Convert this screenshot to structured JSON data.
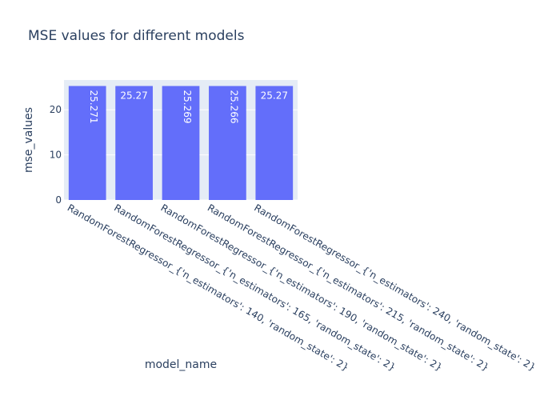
{
  "chart_data": {
    "type": "bar",
    "title": "MSE values for different models",
    "xlabel": "model_name",
    "ylabel": "mse_values",
    "categories": [
      "RandomForestRegressor_{'n_estimators': 140, 'random_state': 2}",
      "RandomForestRegressor_{'n_estimators': 165, 'random_state': 2}",
      "RandomForestRegressor_{'n_estimators': 190, 'random_state': 2}",
      "RandomForestRegressor_{'n_estimators': 215, 'random_state': 2}",
      "RandomForestRegressor_{'n_estimators': 240, 'random_state': 2}"
    ],
    "values": [
      25.271,
      25.27,
      25.269,
      25.266,
      25.27
    ],
    "data_labels": [
      "25.271",
      "25.27",
      "25.269",
      "25.266",
      "25.27"
    ],
    "ylim": [
      0,
      26.6
    ],
    "yticks": [
      0,
      10,
      20
    ],
    "grid": true,
    "colors": {
      "bar": "#636efa",
      "plot_background": "#e5ecf6",
      "gridline": "#ffffff",
      "text": "#2a3f5f",
      "bar_text": "#ffffff"
    }
  }
}
